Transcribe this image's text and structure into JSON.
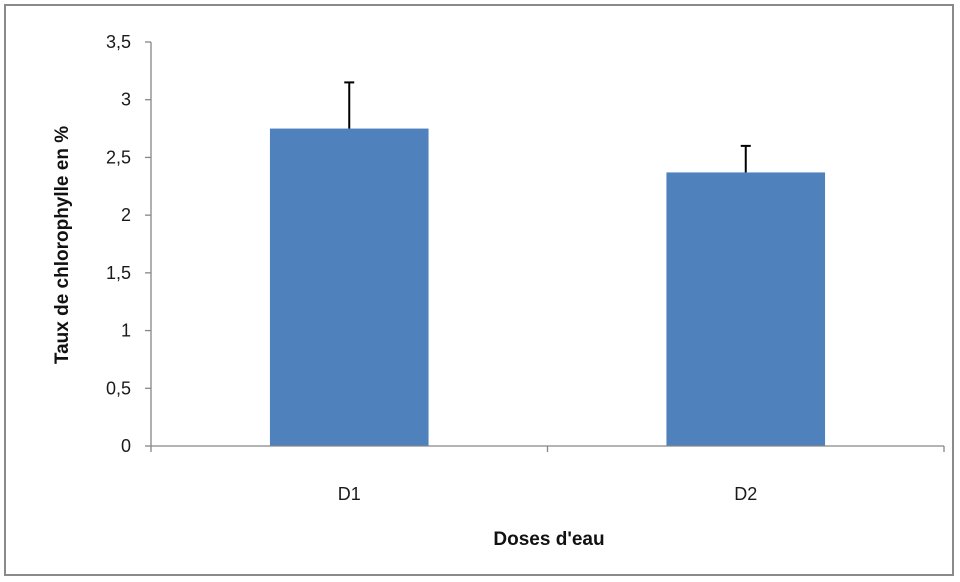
{
  "chart_data": {
    "type": "bar",
    "categories": [
      "D1",
      "D2"
    ],
    "values": [
      2.75,
      2.37
    ],
    "error_upper": [
      3.15,
      2.6
    ],
    "xlabel": "Doses d'eau",
    "ylabel": "Taux de chlorophylle en %",
    "ylim": [
      0,
      3.5
    ],
    "yticks": [
      "0",
      "0,5",
      "1",
      "1,5",
      "2",
      "2,5",
      "3",
      "3,5"
    ],
    "ytick_values": [
      0,
      0.5,
      1,
      1.5,
      2,
      2.5,
      3,
      3.5
    ],
    "grid": false,
    "legend": "none",
    "bar_color": "#4f81bd",
    "axis_color": "#868686",
    "error_bar_color": "#000000"
  }
}
